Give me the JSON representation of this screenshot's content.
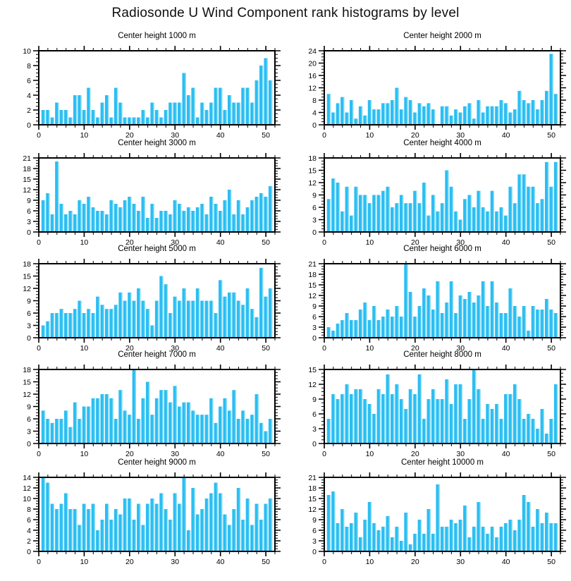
{
  "page_title": "Radiosonde U Wind Component rank histograms by level",
  "colors": {
    "bar_fill": "#2BBEF2",
    "bar_highlight": "#8EDFF8",
    "axis": "#000000",
    "background": "#FFFFFF"
  },
  "chart_data": [
    {
      "type": "bar",
      "title": "Center height 1000 m",
      "xlabel": "",
      "ylabel": "",
      "xlim": [
        0,
        52
      ],
      "xticks": [
        0,
        10,
        20,
        30,
        40,
        50
      ],
      "ylim": [
        0,
        10
      ],
      "ystep": 2,
      "x_first_rank": 1,
      "values": [
        2,
        2,
        1,
        3,
        2,
        2,
        1,
        4,
        4,
        2,
        5,
        2,
        1,
        3,
        4,
        1,
        5,
        3,
        1,
        1,
        1,
        1,
        2,
        1,
        3,
        2,
        1,
        2,
        3,
        3,
        3,
        7,
        4,
        5,
        1,
        3,
        2,
        3,
        5,
        5,
        2,
        4,
        3,
        3,
        5,
        5,
        3,
        6,
        8,
        9,
        6
      ]
    },
    {
      "type": "bar",
      "title": "Center height 2000 m",
      "xlabel": "",
      "ylabel": "",
      "xlim": [
        0,
        52
      ],
      "xticks": [
        0,
        10,
        20,
        30,
        40,
        50
      ],
      "ylim": [
        0,
        24
      ],
      "ystep": 4,
      "x_first_rank": 1,
      "values": [
        10,
        4,
        7,
        9,
        4,
        8,
        2,
        6,
        3,
        8,
        5,
        5,
        7,
        7,
        8,
        12,
        5,
        9,
        8,
        4,
        7,
        6,
        7,
        5,
        0,
        6,
        6,
        3,
        5,
        4,
        6,
        7,
        2,
        8,
        4,
        6,
        6,
        6,
        8,
        7,
        4,
        5,
        11,
        8,
        7,
        8,
        5,
        8,
        11,
        23,
        10
      ]
    },
    {
      "type": "bar",
      "title": "Center height 3000 m",
      "xlabel": "",
      "ylabel": "",
      "xlim": [
        0,
        52
      ],
      "xticks": [
        0,
        10,
        20,
        30,
        40,
        50
      ],
      "ylim": [
        0,
        21
      ],
      "ystep": 3,
      "x_first_rank": 1,
      "values": [
        9,
        11,
        5,
        20,
        8,
        5,
        6,
        5,
        9,
        8,
        10,
        7,
        6,
        6,
        5,
        9,
        8,
        7,
        9,
        10,
        8,
        6,
        10,
        4,
        8,
        4,
        6,
        6,
        5,
        9,
        8,
        6,
        7,
        6,
        7,
        8,
        5,
        10,
        8,
        6,
        9,
        12,
        5,
        9,
        5,
        7,
        9,
        10,
        11,
        10,
        13
      ]
    },
    {
      "type": "bar",
      "title": "Center height 4000 m",
      "xlabel": "",
      "ylabel": "",
      "xlim": [
        0,
        52
      ],
      "xticks": [
        0,
        10,
        20,
        30,
        40,
        50
      ],
      "ylim": [
        0,
        18
      ],
      "ystep": 3,
      "x_first_rank": 1,
      "values": [
        8,
        13,
        12,
        5,
        11,
        4,
        11,
        9,
        9,
        7,
        9,
        9,
        10,
        11,
        6,
        7,
        9,
        7,
        7,
        10,
        7,
        12,
        4,
        9,
        5,
        7,
        15,
        11,
        5,
        3,
        8,
        9,
        6,
        10,
        6,
        5,
        10,
        5,
        6,
        4,
        11,
        7,
        14,
        14,
        11,
        11,
        7,
        8,
        17,
        11,
        17
      ]
    },
    {
      "type": "bar",
      "title": "Center height 5000 m",
      "xlabel": "",
      "ylabel": "",
      "xlim": [
        0,
        52
      ],
      "xticks": [
        0,
        10,
        20,
        30,
        40,
        50
      ],
      "ylim": [
        0,
        18
      ],
      "ystep": 3,
      "x_first_rank": 1,
      "values": [
        3,
        4,
        6,
        6,
        7,
        6,
        6,
        7,
        9,
        6,
        7,
        6,
        10,
        8,
        7,
        7,
        8,
        11,
        9,
        11,
        9,
        12,
        9,
        7,
        3,
        9,
        15,
        13,
        6,
        10,
        9,
        12,
        9,
        9,
        12,
        9,
        9,
        9,
        6,
        14,
        10,
        11,
        11,
        9,
        8,
        12,
        7,
        5,
        17,
        10,
        12
      ]
    },
    {
      "type": "bar",
      "title": "Center height 6000 m",
      "xlabel": "",
      "ylabel": "",
      "xlim": [
        0,
        52
      ],
      "xticks": [
        0,
        10,
        20,
        30,
        40,
        50
      ],
      "ylim": [
        0,
        21
      ],
      "ystep": 3,
      "x_first_rank": 1,
      "values": [
        3,
        2,
        4,
        5,
        7,
        5,
        5,
        8,
        10,
        5,
        9,
        5,
        6,
        8,
        6,
        9,
        6,
        21,
        13,
        6,
        9,
        14,
        12,
        8,
        16,
        7,
        10,
        16,
        7,
        12,
        11,
        13,
        10,
        12,
        16,
        9,
        16,
        10,
        7,
        7,
        14,
        9,
        6,
        9,
        2,
        9,
        8,
        8,
        11,
        8,
        7
      ]
    },
    {
      "type": "bar",
      "title": "Center height 7000 m",
      "xlabel": "",
      "ylabel": "",
      "xlim": [
        0,
        52
      ],
      "xticks": [
        0,
        10,
        20,
        30,
        40,
        50
      ],
      "ylim": [
        0,
        18
      ],
      "ystep": 3,
      "x_first_rank": 1,
      "values": [
        8,
        6,
        5,
        6,
        6,
        8,
        4,
        10,
        6,
        9,
        9,
        11,
        11,
        12,
        12,
        11,
        6,
        13,
        8,
        7,
        18,
        6,
        11,
        15,
        7,
        11,
        13,
        13,
        10,
        14,
        9,
        10,
        10,
        8,
        7,
        7,
        7,
        11,
        5,
        9,
        11,
        8,
        13,
        6,
        8,
        6,
        7,
        12,
        5,
        3,
        6
      ]
    },
    {
      "type": "bar",
      "title": "Center height 8000 m",
      "xlabel": "",
      "ylabel": "",
      "xlim": [
        0,
        52
      ],
      "xticks": [
        0,
        10,
        20,
        30,
        40,
        50
      ],
      "ylim": [
        0,
        15
      ],
      "ystep": 3,
      "x_first_rank": 1,
      "values": [
        5,
        10,
        9,
        10,
        12,
        10,
        11,
        11,
        9,
        8,
        6,
        11,
        10,
        14,
        10,
        12,
        9,
        7,
        11,
        10,
        14,
        5,
        9,
        11,
        9,
        9,
        13,
        8,
        12,
        12,
        5,
        9,
        15,
        11,
        5,
        8,
        7,
        8,
        5,
        10,
        10,
        12,
        9,
        5,
        6,
        5,
        3,
        7,
        2,
        5,
        12
      ]
    },
    {
      "type": "bar",
      "title": "Center height 9000 m",
      "xlabel": "",
      "ylabel": "",
      "xlim": [
        0,
        52
      ],
      "xticks": [
        0,
        10,
        20,
        30,
        40,
        50
      ],
      "ylim": [
        0,
        14
      ],
      "ystep": 2,
      "x_first_rank": 1,
      "values": [
        14,
        13,
        9,
        8,
        9,
        11,
        8,
        8,
        5,
        9,
        8,
        9,
        4,
        6,
        9,
        6,
        8,
        7,
        10,
        10,
        6,
        9,
        5,
        9,
        10,
        9,
        11,
        8,
        6,
        11,
        9,
        14,
        4,
        12,
        7,
        8,
        10,
        11,
        13,
        11,
        7,
        5,
        8,
        12,
        6,
        10,
        5,
        9,
        6,
        9,
        10
      ]
    },
    {
      "type": "bar",
      "title": "Center height 10000 m",
      "xlabel": "",
      "ylabel": "",
      "xlim": [
        0,
        52
      ],
      "xticks": [
        0,
        10,
        20,
        30,
        40,
        50
      ],
      "ylim": [
        0,
        21
      ],
      "ystep": 3,
      "x_first_rank": 1,
      "values": [
        16,
        17,
        8,
        12,
        7,
        8,
        11,
        4,
        9,
        14,
        8,
        6,
        7,
        10,
        4,
        7,
        3,
        11,
        2,
        5,
        9,
        5,
        12,
        5,
        19,
        7,
        7,
        9,
        8,
        9,
        13,
        4,
        7,
        14,
        7,
        5,
        7,
        4,
        7,
        8,
        9,
        6,
        9,
        16,
        14,
        7,
        12,
        8,
        11,
        8,
        8
      ]
    }
  ],
  "layout_hints": {
    "grid": "off",
    "legend": "none",
    "tick_style": "outward major and minor ticks on all four sides"
  }
}
